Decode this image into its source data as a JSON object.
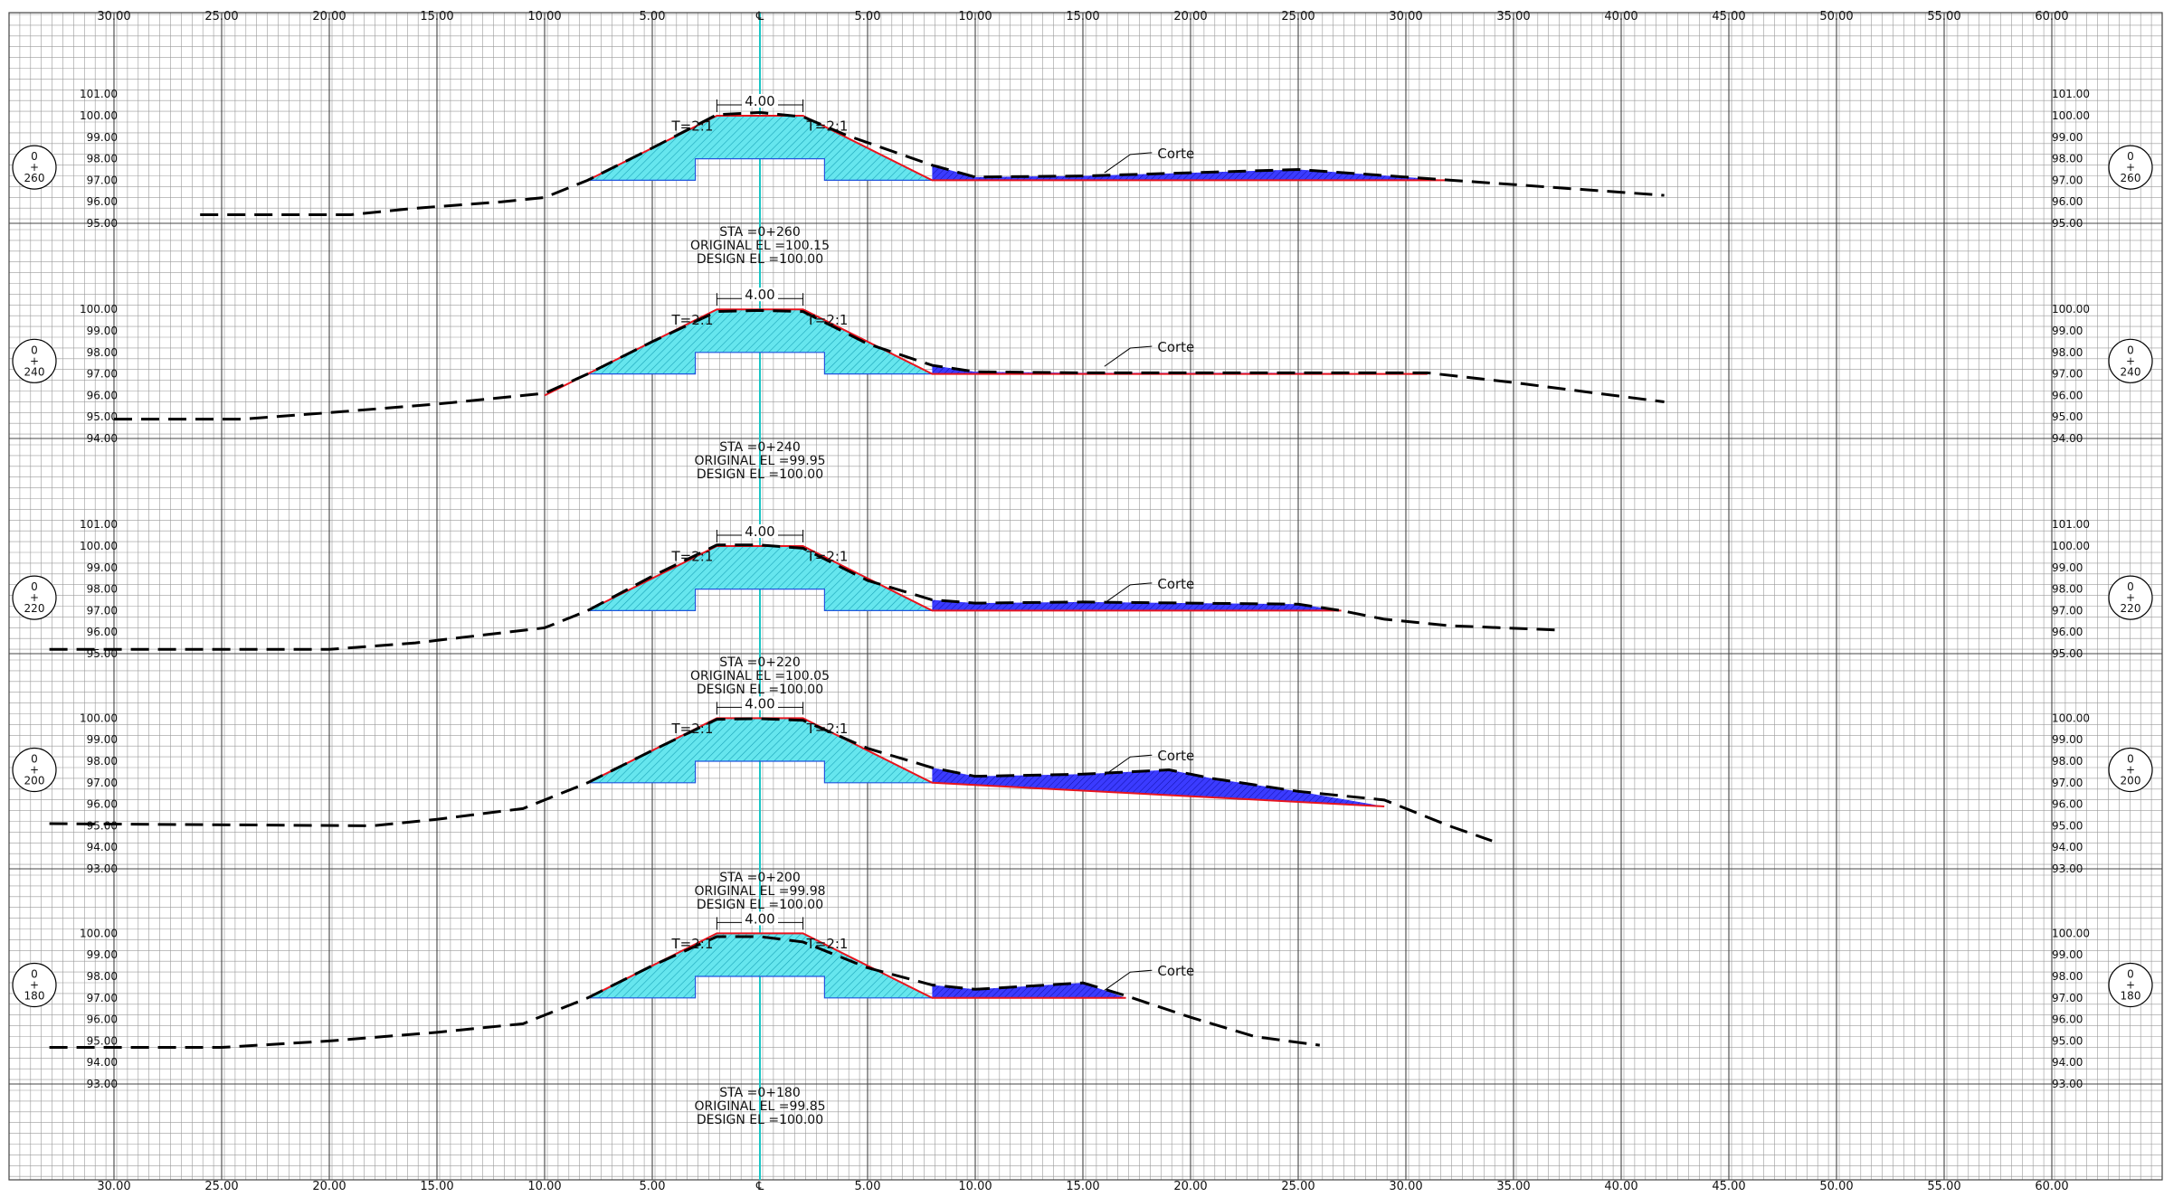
{
  "colors": {
    "grid_minor": "#9a9a9a",
    "grid_major": "#444444",
    "centerline": "#19c5c5",
    "fill_section": "#66e6ee",
    "hatch_section": "#1aa4b8",
    "fill_cut": "#3b3bff",
    "design_line": "#e8141e",
    "ground_line": "#000000",
    "outline_blue": "#2255dd"
  },
  "scale": {
    "top_labels": [
      "30.00",
      "25.00",
      "20.00",
      "15.00",
      "10.00",
      "5.00",
      "℄",
      "5.00",
      "10.00",
      "15.00",
      "20.00",
      "25.00",
      "30.00",
      "35.00",
      "40.00",
      "45.00",
      "50.00",
      "55.00",
      "60.00"
    ],
    "bottom_labels": [
      "30.00",
      "25.00",
      "20.00",
      "15.00",
      "10.00",
      "5.00",
      "℄",
      "5.00",
      "10.00",
      "15.00",
      "20.00",
      "25.00",
      "30.00",
      "35.00",
      "40.00",
      "45.00",
      "50.00",
      "55.00",
      "60.00"
    ],
    "offsets": [
      -30,
      -25,
      -20,
      -15,
      -10,
      -5,
      0,
      5,
      10,
      15,
      20,
      25,
      30,
      35,
      40,
      45,
      50,
      55,
      60
    ]
  },
  "sections": [
    {
      "station": "0+260",
      "station_top": "0",
      "station_mid": "+",
      "station_bottom": "260",
      "datum": 95,
      "elev_labels_left": [
        "101.00",
        "100.00",
        "99.00",
        "98.00",
        "97.00",
        "96.00",
        "95.00"
      ],
      "elev_labels_right": [
        "101.00",
        "100.00",
        "99.00",
        "98.00",
        "97.00",
        "96.00",
        "95.00"
      ],
      "elev_values": [
        101,
        100,
        99,
        98,
        97,
        96,
        95
      ],
      "top_width_label": "4.00",
      "slope_left": "T=2:1",
      "slope_right": "T=2:1",
      "corte_label": "Corte",
      "sta_line": "STA  =0+260",
      "orig_line": "ORIGINAL  EL  =100.15",
      "design_line": "DESIGN  EL  =100.00",
      "ground": [
        [
          -26,
          95.4
        ],
        [
          -19,
          95.4
        ],
        [
          -16,
          95.7
        ],
        [
          -12,
          96.0
        ],
        [
          -10,
          96.2
        ],
        [
          -8,
          97.0
        ],
        [
          -5,
          98.5
        ],
        [
          -2,
          100.05
        ],
        [
          0,
          100.15
        ],
        [
          2,
          99.95
        ],
        [
          4,
          99.1
        ],
        [
          8,
          97.7
        ],
        [
          10,
          97.15
        ],
        [
          15,
          97.2
        ],
        [
          20,
          97.35
        ],
        [
          25,
          97.5
        ],
        [
          30,
          97.15
        ],
        [
          35,
          96.8
        ],
        [
          42,
          96.3
        ]
      ],
      "design": [
        [
          -8,
          97.0
        ],
        [
          -2,
          100.0
        ],
        [
          2,
          100.0
        ],
        [
          8,
          97.0
        ],
        [
          32,
          97.0
        ]
      ],
      "cut": [
        [
          8,
          97.0
        ],
        [
          32,
          97.0
        ],
        [
          30,
          97.15
        ],
        [
          25,
          97.5
        ],
        [
          20,
          97.35
        ],
        [
          15,
          97.2
        ],
        [
          10,
          97.15
        ],
        [
          8,
          97.7
        ]
      ]
    },
    {
      "station": "0+240",
      "station_top": "0",
      "station_mid": "+",
      "station_bottom": "240",
      "datum": 94,
      "elev_labels_left": [
        "100.00",
        "99.00",
        "98.00",
        "97.00",
        "96.00",
        "95.00",
        "94.00"
      ],
      "elev_labels_right": [
        "100.00",
        "99.00",
        "98.00",
        "97.00",
        "96.00",
        "95.00",
        "94.00"
      ],
      "elev_values": [
        100,
        99,
        98,
        97,
        96,
        95,
        94
      ],
      "top_width_label": "4.00",
      "slope_left": "T=2:1",
      "slope_right": "T=2:1",
      "corte_label": "Corte",
      "sta_line": "STA  =0+240",
      "orig_line": "ORIGINAL  EL  =99.95",
      "design_line": "DESIGN  EL  =100.00",
      "ground": [
        [
          -30,
          94.9
        ],
        [
          -24,
          94.9
        ],
        [
          -20,
          95.2
        ],
        [
          -15,
          95.6
        ],
        [
          -10,
          96.1
        ],
        [
          -8,
          97.0
        ],
        [
          -5,
          98.5
        ],
        [
          -2,
          99.9
        ],
        [
          0,
          99.95
        ],
        [
          2,
          99.9
        ],
        [
          5,
          98.4
        ],
        [
          8,
          97.4
        ],
        [
          10,
          97.1
        ],
        [
          15,
          97.05
        ],
        [
          20,
          97.05
        ],
        [
          25,
          97.05
        ],
        [
          31,
          97.05
        ],
        [
          35,
          96.6
        ],
        [
          42,
          95.7
        ]
      ],
      "design": [
        [
          -10,
          96.0
        ],
        [
          -2,
          100.0
        ],
        [
          2,
          100.0
        ],
        [
          8,
          97.0
        ],
        [
          31,
          97.0
        ]
      ],
      "cut": [
        [
          8,
          97.0
        ],
        [
          31,
          97.0
        ],
        [
          25,
          97.05
        ],
        [
          20,
          97.05
        ],
        [
          15,
          97.05
        ],
        [
          10,
          97.1
        ],
        [
          8,
          97.4
        ]
      ]
    },
    {
      "station": "0+220",
      "station_top": "0",
      "station_mid": "+",
      "station_bottom": "220",
      "datum": 95,
      "elev_labels_left": [
        "101.00",
        "100.00",
        "99.00",
        "98.00",
        "97.00",
        "96.00",
        "95.00"
      ],
      "elev_labels_right": [
        "101.00",
        "100.00",
        "99.00",
        "98.00",
        "97.00",
        "96.00",
        "95.00"
      ],
      "elev_values": [
        101,
        100,
        99,
        98,
        97,
        96,
        95
      ],
      "top_width_label": "4.00",
      "slope_left": "T=2:1",
      "slope_right": "T=2:1",
      "corte_label": "Corte",
      "sta_line": "STA  =0+220",
      "orig_line": "ORIGINAL  EL  =100.05",
      "design_line": "DESIGN  EL  =100.00",
      "ground": [
        [
          -33,
          95.2
        ],
        [
          -20,
          95.2
        ],
        [
          -16,
          95.5
        ],
        [
          -10,
          96.2
        ],
        [
          -8,
          97.0
        ],
        [
          -5,
          98.6
        ],
        [
          -2,
          100.05
        ],
        [
          0,
          100.05
        ],
        [
          2,
          99.9
        ],
        [
          5,
          98.4
        ],
        [
          8,
          97.5
        ],
        [
          10,
          97.35
        ],
        [
          15,
          97.4
        ],
        [
          20,
          97.35
        ],
        [
          25,
          97.3
        ],
        [
          27,
          97.0
        ],
        [
          29,
          96.6
        ],
        [
          32,
          96.3
        ],
        [
          37,
          96.1
        ]
      ],
      "design": [
        [
          -8,
          97.0
        ],
        [
          -2,
          100.0
        ],
        [
          2,
          100.0
        ],
        [
          8,
          97.0
        ],
        [
          27,
          97.0
        ]
      ],
      "cut": [
        [
          8,
          97.0
        ],
        [
          27,
          97.0
        ],
        [
          25,
          97.3
        ],
        [
          20,
          97.35
        ],
        [
          15,
          97.4
        ],
        [
          10,
          97.35
        ],
        [
          8,
          97.5
        ]
      ]
    },
    {
      "station": "0+200",
      "station_top": "0",
      "station_mid": "+",
      "station_bottom": "200",
      "datum": 93,
      "elev_labels_left": [
        "100.00",
        "99.00",
        "98.00",
        "97.00",
        "96.00",
        "95.00",
        "94.00",
        "93.00"
      ],
      "elev_labels_right": [
        "100.00",
        "99.00",
        "98.00",
        "97.00",
        "96.00",
        "95.00",
        "94.00",
        "93.00"
      ],
      "elev_values": [
        100,
        99,
        98,
        97,
        96,
        95,
        94,
        93
      ],
      "top_width_label": "4.00",
      "slope_left": "T=2:1",
      "slope_right": "T=2:1",
      "corte_label": "Corte",
      "sta_line": "STA  =0+200",
      "orig_line": "ORIGINAL  EL  =99.98",
      "design_line": "DESIGN  EL  =100.00",
      "ground": [
        [
          -33,
          95.1
        ],
        [
          -18,
          95.0
        ],
        [
          -15,
          95.3
        ],
        [
          -11,
          95.8
        ],
        [
          -8,
          97.0
        ],
        [
          -5,
          98.5
        ],
        [
          -2,
          99.95
        ],
        [
          0,
          99.98
        ],
        [
          2,
          99.9
        ],
        [
          5,
          98.6
        ],
        [
          8,
          97.7
        ],
        [
          10,
          97.3
        ],
        [
          15,
          97.4
        ],
        [
          19,
          97.6
        ],
        [
          21,
          97.2
        ],
        [
          25,
          96.6
        ],
        [
          29,
          96.2
        ],
        [
          32,
          95.0
        ],
        [
          34,
          94.3
        ]
      ],
      "design": [
        [
          -8,
          97.0
        ],
        [
          -2,
          100.0
        ],
        [
          2,
          100.0
        ],
        [
          8,
          97.0
        ],
        [
          29,
          95.9
        ]
      ],
      "cut": [
        [
          8,
          97.0
        ],
        [
          29,
          95.9
        ],
        [
          25,
          96.6
        ],
        [
          21,
          97.2
        ],
        [
          19,
          97.6
        ],
        [
          15,
          97.4
        ],
        [
          10,
          97.3
        ],
        [
          8,
          97.7
        ]
      ]
    },
    {
      "station": "0+180",
      "station_top": "0",
      "station_mid": "+",
      "station_bottom": "180",
      "datum": 93,
      "elev_labels_left": [
        "100.00",
        "99.00",
        "98.00",
        "97.00",
        "96.00",
        "95.00",
        "94.00",
        "93.00"
      ],
      "elev_labels_right": [
        "100.00",
        "99.00",
        "98.00",
        "97.00",
        "96.00",
        "95.00",
        "94.00",
        "93.00"
      ],
      "elev_values": [
        100,
        99,
        98,
        97,
        96,
        95,
        94,
        93
      ],
      "top_width_label": "4.00",
      "slope_left": "T=2:1",
      "slope_right": "T=2:1",
      "corte_label": "Corte",
      "sta_line": "STA  =0+180",
      "orig_line": "ORIGINAL  EL  =99.85",
      "design_line": "DESIGN  EL  =100.00",
      "ground": [
        [
          -33,
          94.7
        ],
        [
          -25,
          94.7
        ],
        [
          -20,
          95.0
        ],
        [
          -15,
          95.4
        ],
        [
          -11,
          95.8
        ],
        [
          -8,
          97.0
        ],
        [
          -5,
          98.5
        ],
        [
          -2,
          99.85
        ],
        [
          0,
          99.85
        ],
        [
          2,
          99.6
        ],
        [
          5,
          98.4
        ],
        [
          8,
          97.6
        ],
        [
          10,
          97.4
        ],
        [
          15,
          97.7
        ],
        [
          17,
          97.1
        ],
        [
          20,
          96.1
        ],
        [
          23,
          95.2
        ],
        [
          26,
          94.8
        ]
      ],
      "design": [
        [
          -8,
          97.0
        ],
        [
          -2,
          100.0
        ],
        [
          2,
          100.0
        ],
        [
          8,
          97.0
        ],
        [
          17,
          97.0
        ]
      ],
      "cut": [
        [
          8,
          97.0
        ],
        [
          17,
          97.0
        ],
        [
          15,
          97.7
        ],
        [
          10,
          97.4
        ],
        [
          8,
          97.6
        ]
      ]
    }
  ]
}
